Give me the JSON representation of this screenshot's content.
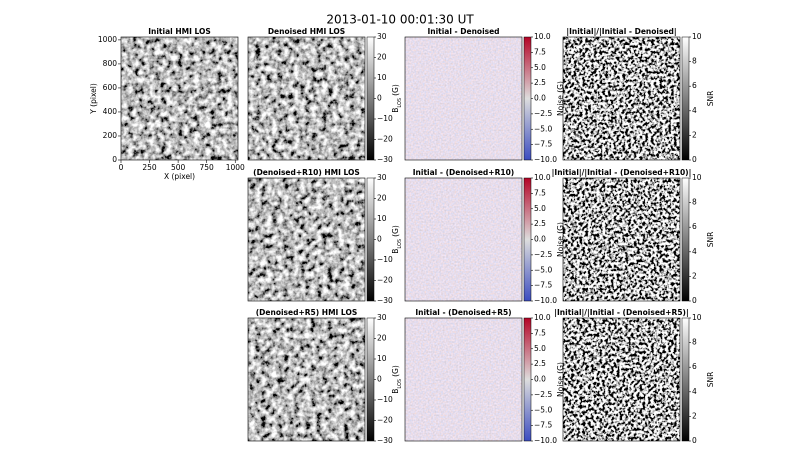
{
  "figure_title": "2013-01-10  00:01:30  UT",
  "chart_data": [
    {
      "type": "image",
      "title": "Initial HMI LOS",
      "cmap": "gray",
      "xlabel": "X (pixel)",
      "ylabel": "Y (pixel)",
      "xlim": [
        0,
        1024
      ],
      "ylim": [
        0,
        1024
      ],
      "xticks": [
        0,
        250,
        500,
        750,
        1000
      ],
      "yticks": [
        0,
        200,
        400,
        600,
        800,
        1000
      ]
    },
    {
      "type": "image",
      "title": "Denoised HMI LOS",
      "cmap": "gray",
      "clim": [
        -30,
        30
      ],
      "cticks": [
        {
          "value": -30,
          "label": "−30"
        },
        {
          "value": -20,
          "label": "−20"
        },
        {
          "value": -10,
          "label": "−10"
        },
        0,
        10,
        20,
        30
      ],
      "clabel": [
        "B",
        "LOS",
        "(G)"
      ]
    },
    {
      "type": "image",
      "title": "Initial - Denoised",
      "cmap": "coolwarm",
      "clim": [
        -10,
        10
      ],
      "cticks": [
        {
          "value": -10,
          "label": "−10.0"
        },
        {
          "value": -7.5,
          "label": "−7.5"
        },
        {
          "value": -5,
          "label": "−5.0"
        },
        {
          "value": -2.5,
          "label": "−2.5"
        },
        {
          "value": 0,
          "label": "0.0"
        },
        2.5,
        {
          "value": 5,
          "label": "5.0"
        },
        7.5,
        {
          "value": 10,
          "label": "10.0"
        }
      ],
      "clabel": [
        "Noise (G)"
      ]
    },
    {
      "type": "image",
      "title": "|Initial|/|Initial - Denoised|",
      "cmap": "snr",
      "clim": [
        0,
        10
      ],
      "cticks": [
        0,
        2,
        4,
        6,
        8,
        10
      ],
      "clabel": [
        "SNR"
      ]
    },
    {
      "type": "image",
      "title": "(Denoised+R10) HMI LOS",
      "cmap": "gray",
      "clim": [
        -30,
        30
      ],
      "cticks": [
        {
          "value": -30,
          "label": "−30"
        },
        {
          "value": -20,
          "label": "−20"
        },
        {
          "value": -10,
          "label": "−10"
        },
        0,
        10,
        20,
        30
      ],
      "clabel": [
        "B",
        "LOS",
        "(G)"
      ]
    },
    {
      "type": "image",
      "title": "Initial - (Denoised+R10)",
      "cmap": "coolwarm",
      "clim": [
        -10,
        10
      ],
      "cticks": [
        {
          "value": -10,
          "label": "−10.0"
        },
        {
          "value": -7.5,
          "label": "−7.5"
        },
        {
          "value": -5,
          "label": "−5.0"
        },
        {
          "value": -2.5,
          "label": "−2.5"
        },
        {
          "value": 0,
          "label": "0.0"
        },
        2.5,
        {
          "value": 5,
          "label": "5.0"
        },
        7.5,
        {
          "value": 10,
          "label": "10.0"
        }
      ],
      "clabel": [
        "Noise (G)"
      ]
    },
    {
      "type": "image",
      "title": "|Initial|/|Initial - (Denoised+R10)|",
      "cmap": "snr",
      "clim": [
        0,
        10
      ],
      "cticks": [
        0,
        2,
        4,
        6,
        8,
        10
      ],
      "clabel": [
        "SNR"
      ]
    },
    {
      "type": "image",
      "title": "(Denoised+R5) HMI LOS",
      "cmap": "gray",
      "clim": [
        -30,
        30
      ],
      "cticks": [
        {
          "value": -30,
          "label": "−30"
        },
        {
          "value": -20,
          "label": "−20"
        },
        {
          "value": -10,
          "label": "−10"
        },
        0,
        10,
        20,
        30
      ],
      "clabel": [
        "B",
        "LOS",
        "(G)"
      ]
    },
    {
      "type": "image",
      "title": "Initial - (Denoised+R5)",
      "cmap": "coolwarm",
      "clim": [
        -10,
        10
      ],
      "cticks": [
        {
          "value": -10,
          "label": "−10.0"
        },
        {
          "value": -7.5,
          "label": "−7.5"
        },
        {
          "value": -5,
          "label": "−5.0"
        },
        {
          "value": -2.5,
          "label": "−2.5"
        },
        {
          "value": 0,
          "label": "0.0"
        },
        2.5,
        {
          "value": 5,
          "label": "5.0"
        },
        7.5,
        {
          "value": 10,
          "label": "10.0"
        }
      ],
      "clabel": [
        "Noise (G)"
      ]
    },
    {
      "type": "image",
      "title": "|Initial|/|Initial - (Denoised+R5)|",
      "cmap": "snr",
      "clim": [
        0,
        10
      ],
      "cticks": [
        0,
        2,
        4,
        6,
        8,
        10
      ],
      "clabel": [
        "SNR"
      ]
    }
  ]
}
